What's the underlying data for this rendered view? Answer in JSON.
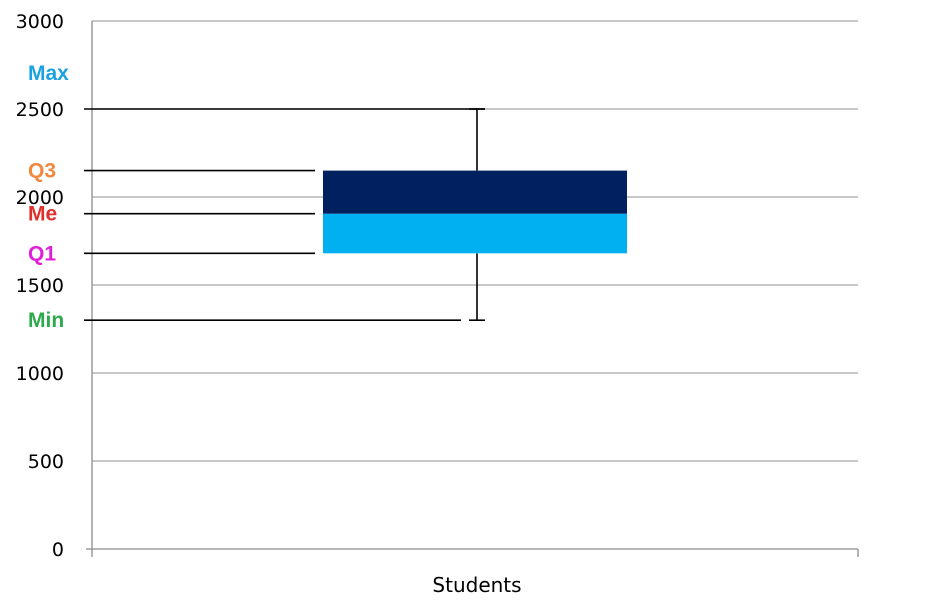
{
  "chart_data": {
    "type": "box",
    "categories": [
      "Students"
    ],
    "ylim": [
      0,
      3000
    ],
    "yticks": [
      0,
      500,
      1000,
      1500,
      2000,
      2500,
      3000
    ],
    "grid": true,
    "legend": "none",
    "box": {
      "min": 1300,
      "q1": 1680,
      "median": 1905,
      "q3": 2150,
      "max": 2500
    },
    "colors": {
      "lower_box": "#00B0F0",
      "upper_box": "#002060",
      "grid": "#A6A6A6"
    },
    "annotations": [
      {
        "label": "Max",
        "stat": "max",
        "color": "#1BA1E2",
        "line_to": "whisker"
      },
      {
        "label": "Q3",
        "stat": "q3",
        "color": "#F0883E",
        "line_to": "box"
      },
      {
        "label": "Me",
        "stat": "median",
        "color": "#E0302E",
        "line_to": "box"
      },
      {
        "label": "Q1",
        "stat": "q1",
        "color": "#E020D8",
        "line_to": "box"
      },
      {
        "label": "Min",
        "stat": "min",
        "color": "#2EAA4E",
        "line_to": "whisker"
      }
    ]
  }
}
